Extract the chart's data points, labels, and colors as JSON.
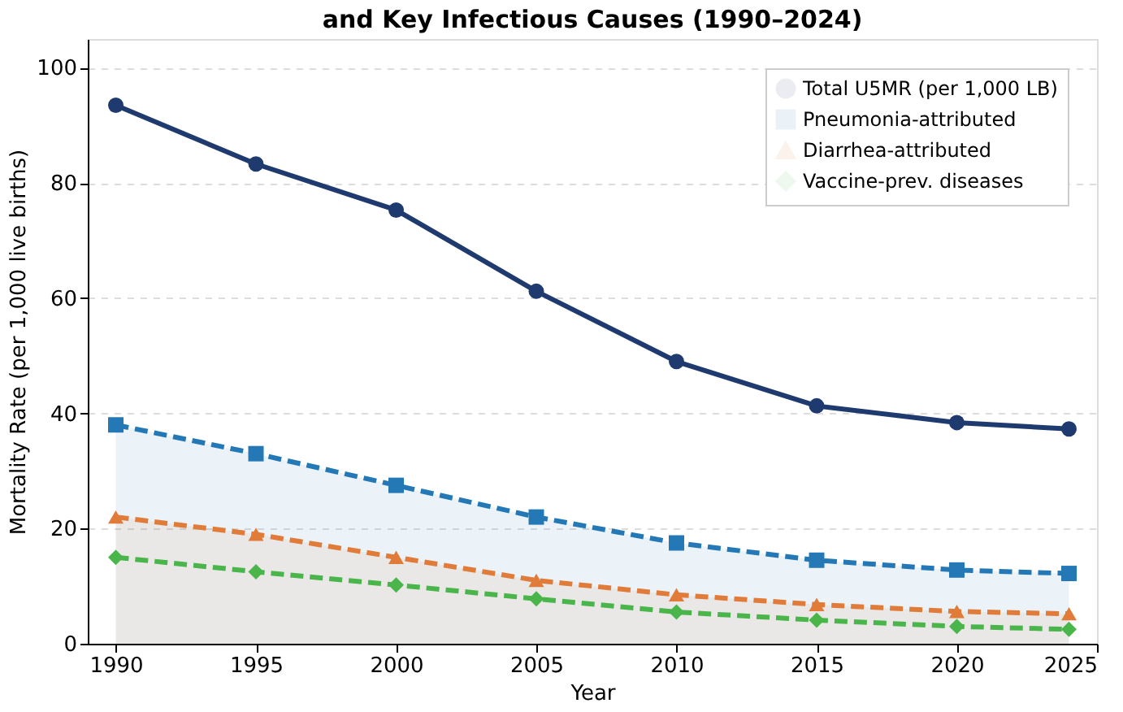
{
  "chart_data": {
    "type": "line",
    "title": "and Key Infectious Causes (1990–2024)",
    "xlabel": "Year",
    "ylabel": "Mortality Rate (per 1,000 live births)",
    "x": [
      1990,
      1995,
      2000,
      2005,
      2010,
      2015,
      2020,
      2024
    ],
    "series": [
      {
        "name": "Total U5MR (per 1,000 LB)",
        "color": "#1f3a6e",
        "marker": "circle",
        "line_style": "solid",
        "values": [
          93.5,
          83.3,
          75.3,
          61.2,
          49.0,
          41.3,
          38.4,
          37.3
        ]
      },
      {
        "name": "Pneumonia-attributed",
        "type": "area",
        "color": "#2378b5",
        "marker": "square",
        "line_style": "dashed",
        "values": [
          38,
          33,
          27.5,
          22,
          17.5,
          14.5,
          12.8,
          12.2
        ]
      },
      {
        "name": "Diarrhea-attributed",
        "type": "area",
        "color": "#e07b39",
        "marker": "triangle",
        "line_style": "dashed",
        "values": [
          22,
          19,
          15,
          11,
          8.5,
          6.8,
          5.6,
          5.2
        ]
      },
      {
        "name": "Vaccine-prev. diseases",
        "color": "#4ab54a",
        "marker": "diamond",
        "line_style": "dashed",
        "values": [
          15,
          12.5,
          10.2,
          7.8,
          5.5,
          4.1,
          3.0,
          2.5
        ]
      }
    ],
    "xlim": [
      1989,
      2025
    ],
    "xticks": [
      1990,
      1995,
      2000,
      2005,
      2010,
      2015,
      2020,
      2025
    ],
    "ylim": [
      0,
      105
    ],
    "yticks": [
      0,
      20,
      40,
      60,
      80,
      100
    ],
    "grid": "y",
    "legend": "top right"
  }
}
